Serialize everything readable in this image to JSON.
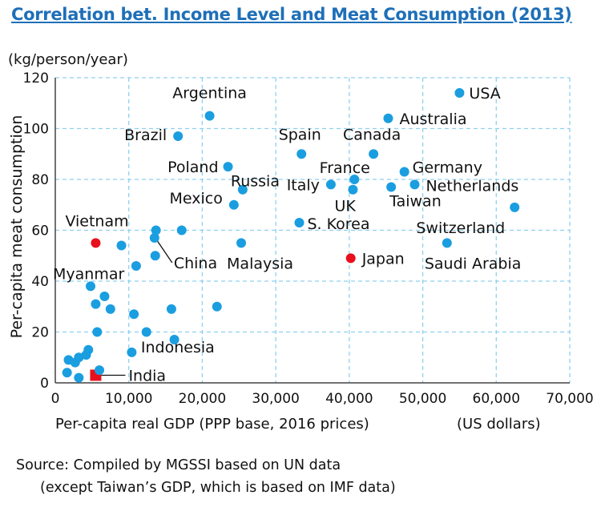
{
  "title": "Correlation bet. Income Level and Meat Consumption (2013)",
  "y_unit": "(kg/person/year)",
  "x_unit": "(US dollars)",
  "source": {
    "line1": "Source: Compiled by MGSSI based on UN data",
    "line2": "(except Taiwan’s GDP, which is based on IMF data)"
  },
  "colors": {
    "point": "#1a9ee0",
    "highlight": "#e8101c",
    "grid": "#8fd0f0",
    "title": "#1e6fb8"
  },
  "chart_data": {
    "type": "scatter",
    "title": "Correlation bet. Income Level and Meat Consumption (2013)",
    "xlabel": "Per-capita real GDP (PPP base, 2016 prices)",
    "ylabel": "Per-capita meat consumption",
    "xlim": [
      0,
      70000
    ],
    "ylim": [
      0,
      120
    ],
    "xticks": [
      0,
      10000,
      20000,
      30000,
      40000,
      50000,
      60000,
      70000
    ],
    "xtick_labels": [
      "0",
      "10,000",
      "20,000",
      "30,000",
      "40,000",
      "50,000",
      "60,000",
      "70,000"
    ],
    "yticks": [
      0,
      20,
      40,
      60,
      80,
      100,
      120
    ],
    "ytick_labels": [
      "0",
      "20",
      "40",
      "60",
      "80",
      "100",
      "120"
    ],
    "grid": true,
    "points": [
      {
        "x": 55000,
        "y": 114,
        "label": "USA"
      },
      {
        "x": 45300,
        "y": 104,
        "label": "Australia"
      },
      {
        "x": 21000,
        "y": 105,
        "label": "Argentina"
      },
      {
        "x": 16700,
        "y": 97,
        "label": "Brazil"
      },
      {
        "x": 33500,
        "y": 90,
        "label": "Spain"
      },
      {
        "x": 43300,
        "y": 90,
        "label": "Canada"
      },
      {
        "x": 23500,
        "y": 85,
        "label": "Poland"
      },
      {
        "x": 47500,
        "y": 83,
        "label": "Germany"
      },
      {
        "x": 40700,
        "y": 80,
        "label": "France"
      },
      {
        "x": 37500,
        "y": 78,
        "label": "Italy"
      },
      {
        "x": 48900,
        "y": 78,
        "label": "Netherlands"
      },
      {
        "x": 45700,
        "y": 77,
        "label": "Taiwan"
      },
      {
        "x": 25500,
        "y": 76,
        "label": "Russia"
      },
      {
        "x": 40500,
        "y": 76,
        "label": "UK"
      },
      {
        "x": 24300,
        "y": 70,
        "label": "Mexico"
      },
      {
        "x": 62500,
        "y": 69,
        "label": "Switzerland"
      },
      {
        "x": 33200,
        "y": 63,
        "label": "S. Korea"
      },
      {
        "x": 5500,
        "y": 55,
        "label": "Vietnam",
        "highlight": true
      },
      {
        "x": 13500,
        "y": 57,
        "label": "China"
      },
      {
        "x": 25300,
        "y": 55,
        "label": "Malaysia"
      },
      {
        "x": 53300,
        "y": 55,
        "label": "Saudi Arabia"
      },
      {
        "x": 40200,
        "y": 49,
        "label": "Japan",
        "highlight": true
      },
      {
        "x": 4800,
        "y": 38,
        "label": "Myanmar"
      },
      {
        "x": 15800,
        "y": 29,
        "label": "Indonesia"
      },
      {
        "x": 5500,
        "y": 3,
        "label": "India",
        "highlight": true,
        "shape": "square"
      },
      {
        "x": 13700,
        "y": 60,
        "label": ""
      },
      {
        "x": 17200,
        "y": 60,
        "label": ""
      },
      {
        "x": 9000,
        "y": 54,
        "label": ""
      },
      {
        "x": 13600,
        "y": 50,
        "label": ""
      },
      {
        "x": 11000,
        "y": 46,
        "label": ""
      },
      {
        "x": 6700,
        "y": 34,
        "label": ""
      },
      {
        "x": 5500,
        "y": 31,
        "label": ""
      },
      {
        "x": 7500,
        "y": 29,
        "label": ""
      },
      {
        "x": 10700,
        "y": 27,
        "label": ""
      },
      {
        "x": 22000,
        "y": 30,
        "label": ""
      },
      {
        "x": 5700,
        "y": 20,
        "label": ""
      },
      {
        "x": 12400,
        "y": 20,
        "label": ""
      },
      {
        "x": 16200,
        "y": 17,
        "label": ""
      },
      {
        "x": 10400,
        "y": 12,
        "label": ""
      },
      {
        "x": 4500,
        "y": 13,
        "label": ""
      },
      {
        "x": 4200,
        "y": 11,
        "label": ""
      },
      {
        "x": 1800,
        "y": 9,
        "label": ""
      },
      {
        "x": 3200,
        "y": 10,
        "label": ""
      },
      {
        "x": 2700,
        "y": 8,
        "label": ""
      },
      {
        "x": 1600,
        "y": 4,
        "label": ""
      },
      {
        "x": 3200,
        "y": 2,
        "label": ""
      },
      {
        "x": 6000,
        "y": 5,
        "label": ""
      }
    ]
  }
}
